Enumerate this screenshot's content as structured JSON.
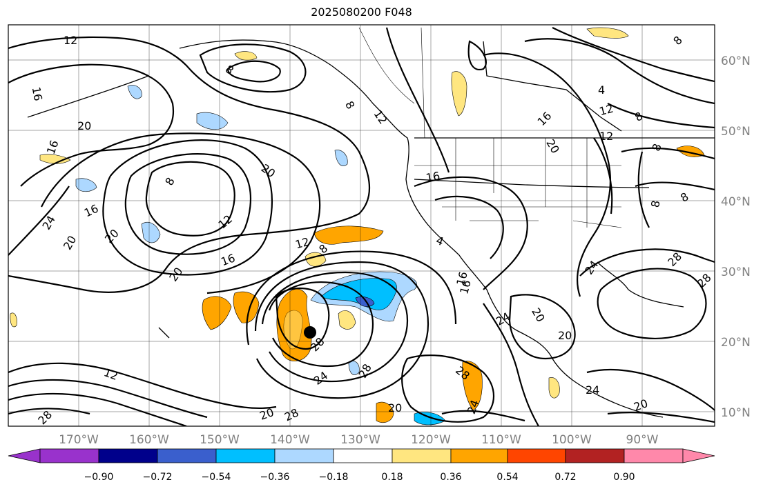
{
  "title": "2025080200 F048",
  "latitude_labels": [
    "60°N",
    "50°N",
    "40°N",
    "30°N",
    "20°N",
    "10°N"
  ],
  "longitude_labels": [
    "170°W",
    "160°W",
    "150°W",
    "140°W",
    "130°W",
    "120°W",
    "110°W",
    "100°W",
    "90°W"
  ],
  "colorbar": {
    "labels": [
      "−0.90",
      "−0.72",
      "−0.54",
      "−0.36",
      "−0.18",
      "0.18",
      "0.36",
      "0.54",
      "0.72",
      "0.90"
    ],
    "colors": [
      "#9932cc",
      "#00008b",
      "#3a5fcd",
      "#00bfff",
      "#add8ff",
      "#ffffff",
      "#ffe680",
      "#ffa500",
      "#ff4500",
      "#b22222",
      "#ff88aa"
    ]
  },
  "contour_labels": [
    "12",
    "16",
    "20",
    "16",
    "8",
    "20",
    "24",
    "20",
    "16",
    "20",
    "8",
    "16",
    "12",
    "16",
    "12",
    "8",
    "8",
    "12",
    "16",
    "20",
    "28",
    "24",
    "28",
    "20",
    "12",
    "28",
    "20",
    "28",
    "24",
    "20",
    "24",
    "28",
    "24",
    "24",
    "20",
    "20",
    "8",
    "4",
    "8",
    "12",
    "16",
    "8",
    "12",
    "8",
    "8",
    "20",
    "28",
    "28",
    "16",
    "4"
  ]
}
